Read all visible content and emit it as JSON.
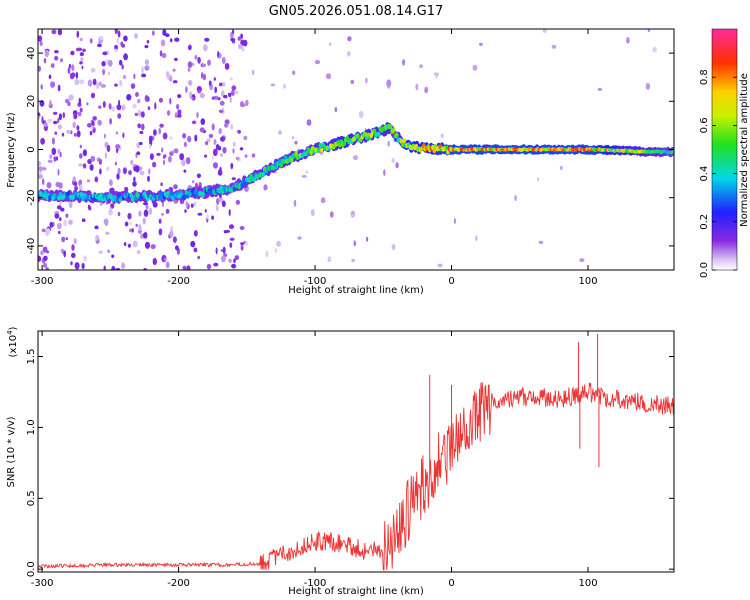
{
  "title": "GN05.2026.051.08.14.G17",
  "chart_data": [
    {
      "type": "heatmap",
      "title": "GN05.2026.051.08.14.G17",
      "xlabel": "Height of straight line (km)",
      "ylabel": "Frequency (Hz)",
      "xlim": [
        -303,
        163
      ],
      "ylim": [
        -50,
        50
      ],
      "xticks": [
        -300,
        -200,
        -100,
        0,
        100
      ],
      "xticklabels": [
        "-300",
        "-200",
        "-100",
        "0",
        "100"
      ],
      "yticks": [
        -40,
        -20,
        0,
        20,
        40
      ],
      "yticklabels": [
        "-40",
        "-20",
        "0",
        "20",
        "40"
      ],
      "colorbar": {
        "label": "Normalized spectral amplitude",
        "range": [
          0,
          1
        ],
        "ticks": [
          0.0,
          0.2,
          0.4,
          0.6,
          0.8
        ],
        "ticklabels": [
          "0.0",
          "0.2",
          "0.4",
          "0.6",
          "0.8"
        ]
      },
      "ridge": {
        "x": [
          -300,
          -250,
          -200,
          -160,
          -140,
          -120,
          -100,
          -80,
          -60,
          -45,
          -38,
          -30,
          0,
          50,
          100,
          150,
          163
        ],
        "freq": [
          -19,
          -20,
          -19,
          -16,
          -10,
          -4,
          0,
          3,
          6,
          9,
          4,
          1,
          0,
          0,
          0,
          -1,
          -1
        ],
        "peak_amplitude": [
          0.45,
          0.45,
          0.45,
          0.45,
          0.55,
          0.6,
          0.65,
          0.7,
          0.7,
          0.6,
          0.7,
          0.85,
          0.95,
          0.95,
          0.95,
          0.6,
          0.5
        ]
      }
    },
    {
      "type": "line",
      "title": "",
      "xlabel": "Height of straight line (km)",
      "ylabel": "SNR (10 * v/v)",
      "yscale_label": "(x10",
      "yscale_exponent": "4",
      "yscale_suffix": ")",
      "xlim": [
        -303,
        163
      ],
      "ylim": [
        -0.02,
        1.68
      ],
      "xticks": [
        -300,
        -200,
        -100,
        0,
        100
      ],
      "xticklabels": [
        "-300",
        "-200",
        "-100",
        "0",
        "100"
      ],
      "yticks": [
        0.0,
        0.5,
        1.0,
        1.5
      ],
      "yticklabels": [
        "0.0",
        "0.5",
        "1.0",
        "1.5"
      ],
      "color": "#ee3333",
      "series": [
        {
          "name": "SNR",
          "x": [
            -303,
            -250,
            -200,
            -160,
            -140,
            -120,
            -100,
            -80,
            -60,
            -50,
            -40,
            -30,
            -20,
            -10,
            0,
            10,
            20,
            30,
            40,
            60,
            80,
            100,
            110,
            120,
            140,
            163
          ],
          "values": [
            0.02,
            0.03,
            0.03,
            0.03,
            0.04,
            0.12,
            0.2,
            0.18,
            0.12,
            0.15,
            0.25,
            0.45,
            0.6,
            0.75,
            0.85,
            0.95,
            1.1,
            1.18,
            1.2,
            1.22,
            1.2,
            1.25,
            1.22,
            1.2,
            1.17,
            1.15
          ],
          "spikes": [
            {
              "x": -16,
              "value": 1.37
            },
            {
              "x": 0,
              "value": 1.3
            },
            {
              "x": 93,
              "value": 1.6
            },
            {
              "x": 107,
              "value": 1.66
            },
            {
              "x": 108,
              "value": 0.72
            },
            {
              "x": 94,
              "value": 0.85
            }
          ]
        }
      ]
    }
  ]
}
